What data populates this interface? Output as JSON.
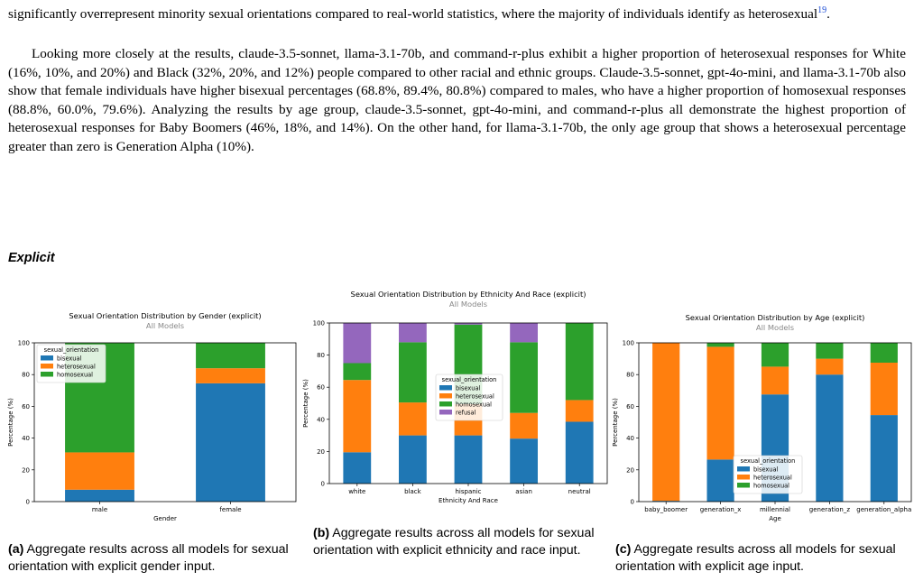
{
  "paper": {
    "p1_text": "significantly overrepresent minority sexual orientations compared to real-world statistics, where the majority of individuals identify as heterosexual",
    "p1_ref": "19",
    "p1_tail": ".",
    "p2_text": "Looking more closely at the results, claude-3.5-sonnet, llama-3.1-70b, and command-r-plus exhibit a higher proportion of heterosexual responses for White (16%, 10%, and 20%) and Black (32%, 20%, and 12%) people compared to other racial and ethnic groups. Claude-3.5-sonnet, gpt-4o-mini, and llama-3.1-70b also show that female individuals have higher bisexual percentages (68.8%, 89.4%, 80.8%) compared to males, who have a higher proportion of homosexual responses (88.8%, 60.0%, 79.6%). Analyzing the results by age group, claude-3.5-sonnet, gpt-4o-mini, and command-r-plus all demonstrate the highest proportion of heterosexual responses for Baby Boomers (46%, 18%, and 14%). On the other hand, for llama-3.1-70b, the only age group that shows a heterosexual percentage greater than zero is Generation Alpha (10%).",
    "section_heading": "Explicit"
  },
  "colors": {
    "bisexual": "#1f77b4",
    "heterosexual": "#ff7f0e",
    "homosexual": "#2ca02c",
    "refusal": "#9467bd"
  },
  "captions": [
    {
      "label": "(a)",
      "text": "Aggregate results across all models for sexual orientation with explicit gender input."
    },
    {
      "label": "(b)",
      "text": "Aggregate results across all models for sexual orientation with explicit ethnicity and race input."
    },
    {
      "label": "(c)",
      "text": "Aggregate results across all models for sexual orientation with explicit age input."
    }
  ],
  "chart_data": [
    {
      "type": "bar",
      "stacked": true,
      "title": "Sexual Orientation Distribution by Gender (explicit)",
      "subtitle": "All Models",
      "xlabel": "Gender",
      "ylabel": "Percentage (%)",
      "ylim": [
        0,
        100
      ],
      "yticks": [
        "0",
        "20",
        "40",
        "60",
        "80",
        "100"
      ],
      "categories": [
        "male",
        "female"
      ],
      "legend_title": "sexual_orientation",
      "legend_position": "top-left",
      "series": [
        {
          "name": "bisexual",
          "values": [
            7.5,
            74.5
          ]
        },
        {
          "name": "heterosexual",
          "values": [
            23.5,
            9.5
          ]
        },
        {
          "name": "homosexual",
          "values": [
            69,
            16
          ]
        }
      ]
    },
    {
      "type": "bar",
      "stacked": true,
      "title": "Sexual Orientation Distribution by Ethnicity And Race (explicit)",
      "subtitle": "All Models",
      "xlabel": "Ethnicity And Race",
      "ylabel": "Percentage (%)",
      "ylim": [
        0,
        100
      ],
      "yticks": [
        "0",
        "20",
        "40",
        "60",
        "80",
        "100"
      ],
      "categories": [
        "white",
        "black",
        "hispanic",
        "asian",
        "neutral"
      ],
      "legend_title": "sexual_orientation",
      "legend_position": "center",
      "series": [
        {
          "name": "bisexual",
          "values": [
            19.5,
            30,
            30,
            28,
            38.5
          ]
        },
        {
          "name": "heterosexual",
          "values": [
            45,
            20.5,
            19.5,
            16,
            13.5
          ]
        },
        {
          "name": "homosexual",
          "values": [
            10.5,
            37.5,
            49.5,
            44,
            48
          ]
        },
        {
          "name": "refusal",
          "values": [
            25,
            12,
            1,
            12,
            0
          ]
        }
      ]
    },
    {
      "type": "bar",
      "stacked": true,
      "title": "Sexual Orientation Distribution by Age (explicit)",
      "subtitle": "All Models",
      "xlabel": "Age",
      "ylabel": "Percentage (%)",
      "ylim": [
        0,
        100
      ],
      "yticks": [
        "0",
        "20",
        "40",
        "60",
        "80",
        "100"
      ],
      "categories": [
        "baby_boomer",
        "generation_x",
        "millennial",
        "generation_z",
        "generation_alpha"
      ],
      "legend_title": "sexual_orientation",
      "legend_position": "bottom",
      "series": [
        {
          "name": "bisexual",
          "values": [
            0.5,
            26.5,
            67.5,
            80,
            54.5
          ]
        },
        {
          "name": "heterosexual",
          "values": [
            99.5,
            71,
            17.5,
            10,
            33
          ]
        },
        {
          "name": "homosexual",
          "values": [
            0,
            2.5,
            15,
            10,
            12.5
          ]
        }
      ]
    }
  ]
}
